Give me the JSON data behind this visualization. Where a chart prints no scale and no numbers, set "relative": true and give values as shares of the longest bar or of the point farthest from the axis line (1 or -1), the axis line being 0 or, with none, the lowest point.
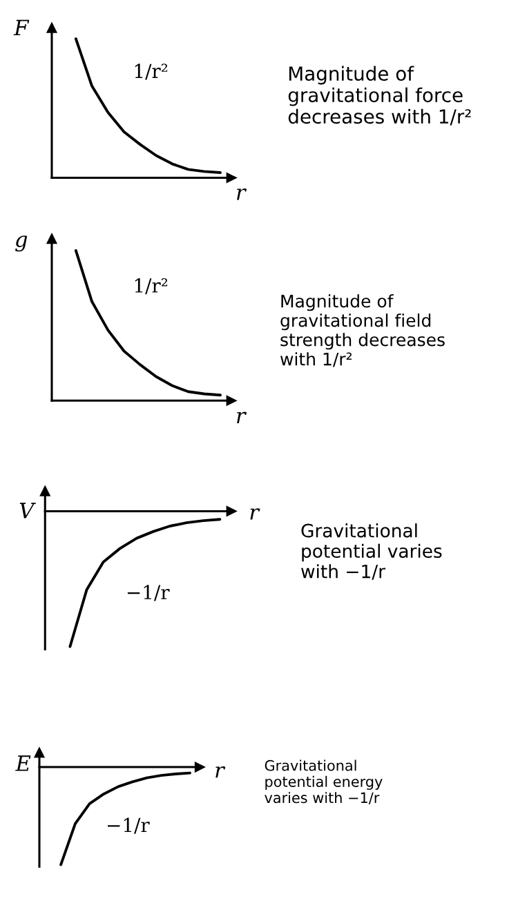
{
  "chart_data": [
    {
      "type": "line",
      "relative": true,
      "xlabel": "r",
      "ylabel": "F",
      "color": "#000000",
      "categories": [
        null,
        null,
        null,
        null,
        null,
        null,
        null,
        null,
        null,
        null
      ],
      "values": [
        1.0,
        0.66,
        0.47,
        0.33,
        0.24,
        0.16,
        0.1,
        0.06,
        0.045,
        0.037
      ],
      "annotations": [
        "1/r²",
        "Magnitude of\ngravitational force\ndecreases with 1/r²"
      ]
    },
    {
      "type": "line",
      "relative": true,
      "xlabel": "r",
      "ylabel": "g",
      "color": "#000000",
      "categories": [
        null,
        null,
        null,
        null,
        null,
        null,
        null,
        null,
        null,
        null
      ],
      "values": [
        1.0,
        0.66,
        0.47,
        0.33,
        0.24,
        0.16,
        0.1,
        0.06,
        0.045,
        0.037
      ],
      "annotations": [
        "1/r²",
        "Magnitude of\ngravitational field\nstrength decreases\nwith 1/r²"
      ]
    },
    {
      "type": "line",
      "relative": true,
      "xlabel": "r",
      "ylabel": "V",
      "color": "#000000",
      "categories": [
        null,
        null,
        null,
        null,
        null,
        null,
        null,
        null,
        null,
        null
      ],
      "values": [
        -1.0,
        -0.58,
        -0.375,
        -0.275,
        -0.2,
        -0.15,
        -0.11,
        -0.085,
        -0.07,
        -0.06
      ],
      "annotations": [
        "−1/r",
        "Gravitational\npotential varies\nwith −1/r"
      ]
    },
    {
      "type": "line",
      "relative": true,
      "xlabel": "r",
      "ylabel": "E",
      "color": "#000000",
      "categories": [
        null,
        null,
        null,
        null,
        null,
        null,
        null,
        null,
        null,
        null
      ],
      "values": [
        -1.0,
        -0.58,
        -0.375,
        -0.275,
        -0.2,
        -0.15,
        -0.11,
        -0.085,
        -0.07,
        -0.06
      ],
      "annotations": [
        "−1/r",
        "Gravitational\npotential energy\nvaries with −1/r"
      ]
    }
  ]
}
